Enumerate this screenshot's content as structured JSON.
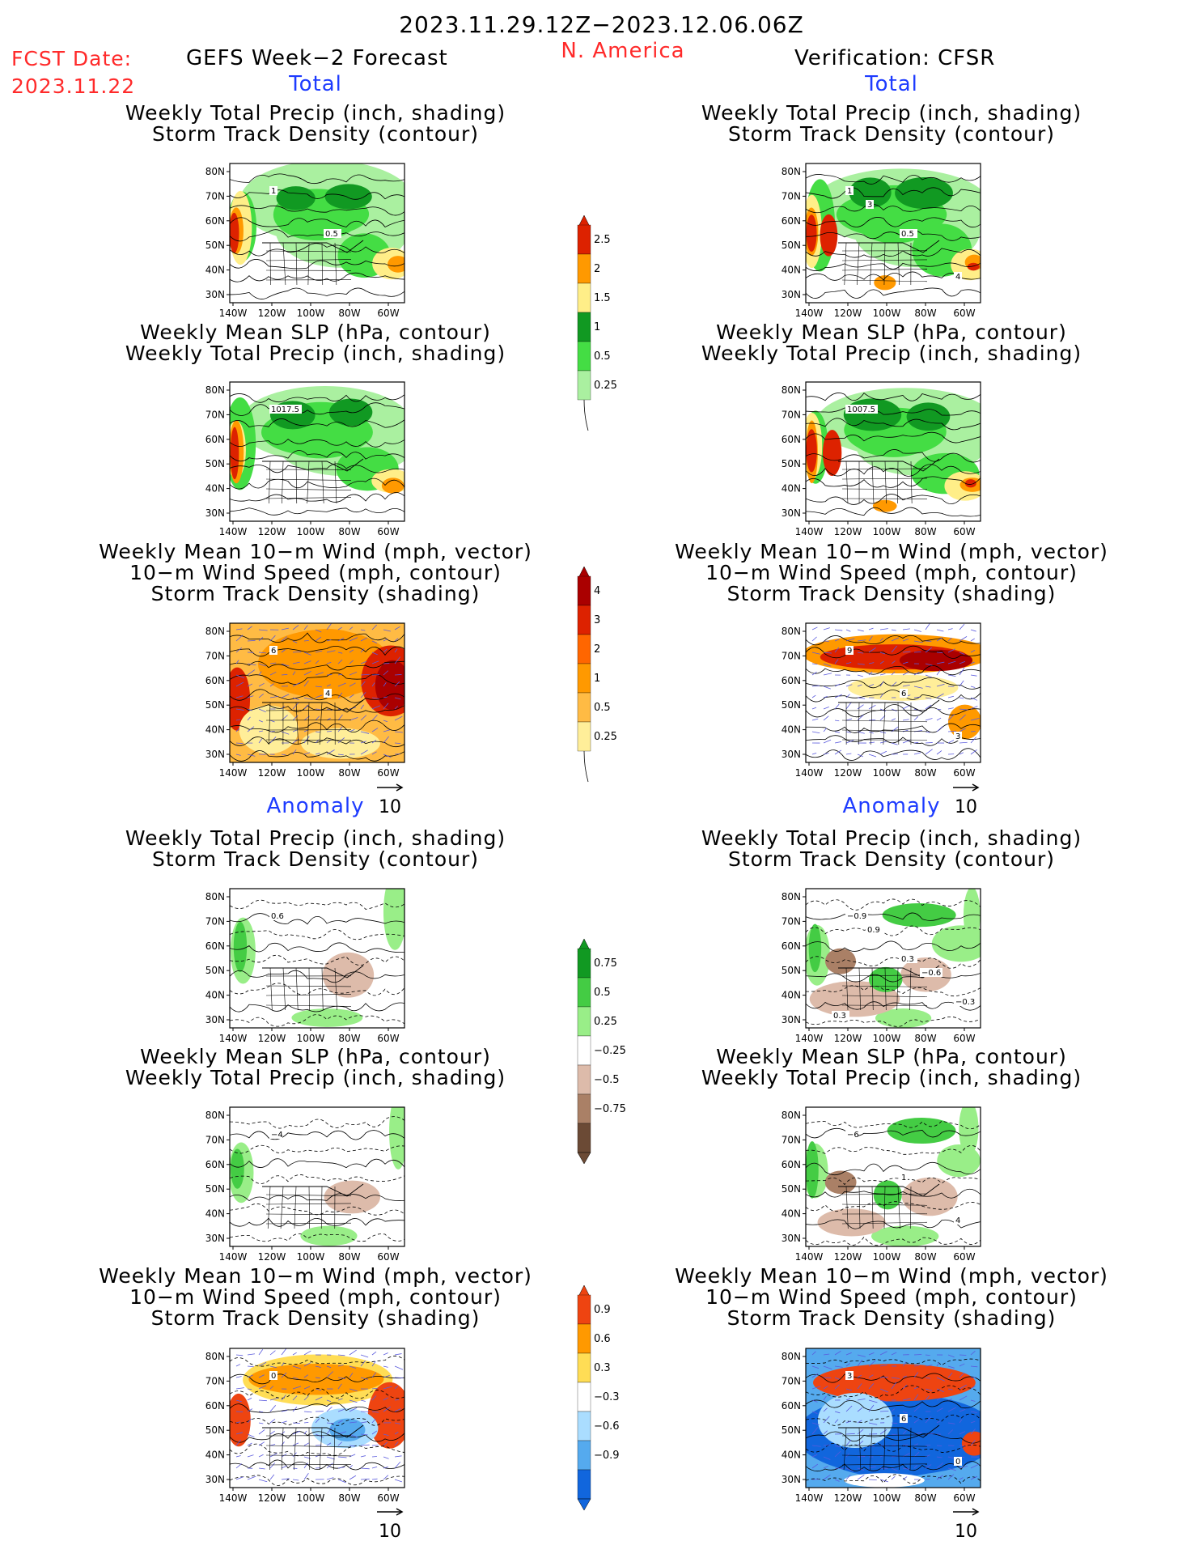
{
  "header": {
    "date_range": "2023.11.29.12Z−2023.12.06.06Z",
    "fcst_label": "FCST Date:",
    "fcst_date": "2023.11.22",
    "left_title": "GEFS Week−2 Forecast",
    "region": "N. America",
    "right_title": "Verification: CFSR"
  },
  "sections": {
    "total": "Total",
    "anomaly": "Anomaly"
  },
  "titles": {
    "precip_track": [
      "Weekly Total Precip (inch, shading)",
      "Storm Track Density (contour)"
    ],
    "slp_precip": [
      "Weekly Mean SLP (hPa, contour)",
      "Weekly Total Precip (inch, shading)"
    ],
    "wind_track": [
      "Weekly Mean 10−m Wind (mph, vector)",
      "10−m Wind Speed (mph, contour)",
      "Storm Track Density (shading)"
    ]
  },
  "map_axes": {
    "lat_labels": [
      "80N",
      "70N",
      "60N",
      "50N",
      "40N",
      "30N"
    ],
    "lon_labels": [
      "140W",
      "120W",
      "100W",
      "80W",
      "60W"
    ]
  },
  "wind_reference": "10",
  "panel_labels": {
    "fcst_total_precip": [
      "1",
      "0.5"
    ],
    "fcst_total_slp": [
      "1017.5"
    ],
    "fcst_total_wind": [
      "6",
      "4"
    ],
    "obs_total_precip": [
      "1",
      "0.5",
      "4",
      "3"
    ],
    "obs_total_slp": [
      "1007.5"
    ],
    "obs_total_wind": [
      "9",
      "6",
      "3"
    ],
    "fcst_anom_precip": [
      "0.6"
    ],
    "fcst_anom_slp": [
      "−4"
    ],
    "fcst_anom_wind": [
      "0"
    ],
    "obs_anom_precip": [
      "−0.9",
      "0.3",
      "−0.3",
      "0.9",
      "−0.6",
      "0.3"
    ],
    "obs_anom_slp": [
      "−6",
      "1",
      "4"
    ],
    "obs_anom_wind": [
      "3",
      "6",
      "0"
    ]
  },
  "colorbars": {
    "precip": {
      "labels": [
        "2.5",
        "2",
        "1.5",
        "1",
        "0.5",
        "0.25"
      ],
      "colors": [
        "#dd2200",
        "#ff9900",
        "#ffee88",
        "#119922",
        "#44dd44",
        "#aaf0a0"
      ]
    },
    "track": {
      "labels": [
        "4",
        "3",
        "2",
        "1",
        "0.5",
        "0.25"
      ],
      "colors": [
        "#aa0000",
        "#dd2200",
        "#ff6600",
        "#ff9900",
        "#ffbb44",
        "#ffee99"
      ]
    },
    "precip_anom": {
      "labels": [
        "0.75",
        "0.5",
        "0.25",
        "−0.25",
        "−0.5",
        "−0.75"
      ],
      "colors": [
        "#119922",
        "#44cc44",
        "#99ee88",
        "#ffffff",
        "#ddbbaa",
        "#aa8066",
        "#6b4a35"
      ]
    },
    "track_anom": {
      "labels": [
        "0.9",
        "0.6",
        "0.3",
        "−0.3",
        "−0.6",
        "−0.9"
      ],
      "colors": [
        "#ee4411",
        "#ff9900",
        "#ffdd55",
        "#ffffff",
        "#aaddff",
        "#55aaee",
        "#1166dd"
      ]
    }
  }
}
